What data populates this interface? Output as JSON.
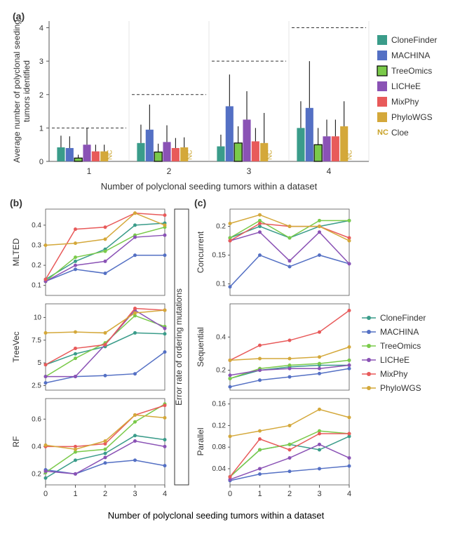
{
  "methods": {
    "CloneFinder": "#3a9c8a",
    "MACHINA": "#5470c4",
    "TreeOmics": "#7aca4a",
    "LICHeE": "#8a52b5",
    "MixPhy": "#e85a5a",
    "PhyloWGS": "#d4a83a",
    "Cloe": "#c9a227"
  },
  "panel_a": {
    "label": "(a)",
    "ylabel": "Average number of polyclonal seeding\ntumors identified",
    "xlabel": "Number of polyclonal seeding tumors within a dataset",
    "x_categories": [
      1,
      2,
      3,
      4
    ],
    "ylim": [
      0,
      4.2
    ],
    "yticks": [
      0,
      1,
      2,
      3,
      4
    ],
    "dashed_lines": [
      1,
      2,
      3,
      4
    ],
    "bars": {
      "1": {
        "CloneFinder": [
          0.42,
          0.35
        ],
        "MACHINA": [
          0.4,
          0.35
        ],
        "TreeOmics": [
          0.1,
          0.1
        ],
        "LICHeE": [
          0.5,
          0.5
        ],
        "MixPhy": [
          0.3,
          0.2
        ],
        "PhyloWGS": [
          0.3,
          0.2
        ]
      },
      "2": {
        "CloneFinder": [
          0.55,
          0.55
        ],
        "MACHINA": [
          0.95,
          0.75
        ],
        "TreeOmics": [
          0.28,
          0.25
        ],
        "LICHeE": [
          0.58,
          0.5
        ],
        "MixPhy": [
          0.4,
          0.3
        ],
        "PhyloWGS": [
          0.42,
          0.3
        ]
      },
      "3": {
        "CloneFinder": [
          0.45,
          0.35
        ],
        "MACHINA": [
          1.65,
          0.95
        ],
        "TreeOmics": [
          0.55,
          0.5
        ],
        "LICHeE": [
          1.25,
          0.85
        ],
        "MixPhy": [
          0.6,
          0.4
        ],
        "PhyloWGS": [
          0.55,
          0.9
        ]
      },
      "4": {
        "CloneFinder": [
          1.0,
          0.8
        ],
        "MACHINA": [
          1.6,
          1.4
        ],
        "TreeOmics": [
          0.5,
          0.5
        ],
        "LICHeE": [
          0.75,
          0.5
        ],
        "MixPhy": [
          0.75,
          0.5
        ],
        "PhyloWGS": [
          1.05,
          0.75
        ]
      }
    }
  },
  "panel_b": {
    "label": "(b)",
    "x_values": [
      0,
      1,
      2,
      3,
      4
    ],
    "subpanels": [
      {
        "ylabel": "MLTED",
        "ylim": [
          0.05,
          0.48
        ],
        "yticks": [
          0.1,
          0.2,
          0.3,
          0.4
        ],
        "series": {
          "CloneFinder": [
            0.13,
            0.22,
            0.28,
            0.4,
            0.41
          ],
          "MACHINA": [
            0.12,
            0.18,
            0.16,
            0.25,
            0.25
          ],
          "TreeOmics": [
            0.12,
            0.24,
            0.27,
            0.35,
            0.39
          ],
          "LICHeE": [
            0.12,
            0.2,
            0.22,
            0.34,
            0.35
          ],
          "MixPhy": [
            0.13,
            0.38,
            0.39,
            0.46,
            0.45
          ],
          "PhyloWGS": [
            0.3,
            0.31,
            0.33,
            0.46,
            0.4
          ]
        }
      },
      {
        "ylabel": "TreeVec",
        "ylim": [
          2.0,
          11.5
        ],
        "yticks": [
          2.5,
          5.0,
          7.5,
          10.0
        ],
        "series": {
          "CloneFinder": [
            4.8,
            6.0,
            6.8,
            8.3,
            8.2
          ],
          "MACHINA": [
            2.8,
            3.5,
            3.6,
            3.8,
            6.2
          ],
          "TreeOmics": [
            3.5,
            5.5,
            7.2,
            10.2,
            9.0
          ],
          "LICHeE": [
            3.5,
            3.5,
            7.0,
            10.8,
            8.8
          ],
          "MixPhy": [
            4.8,
            6.6,
            7.0,
            11.0,
            10.8
          ],
          "PhyloWGS": [
            8.3,
            8.4,
            8.3,
            10.5,
            10.8
          ]
        }
      },
      {
        "ylabel": "RF",
        "ylim": [
          0.12,
          0.75
        ],
        "yticks": [
          0.2,
          0.4,
          0.6
        ],
        "series": {
          "CloneFinder": [
            0.17,
            0.3,
            0.35,
            0.48,
            0.45
          ],
          "MACHINA": [
            0.23,
            0.2,
            0.28,
            0.3,
            0.26
          ],
          "TreeOmics": [
            0.21,
            0.36,
            0.38,
            0.58,
            0.71
          ],
          "LICHeE": [
            0.22,
            0.2,
            0.32,
            0.44,
            0.4
          ],
          "MixPhy": [
            0.4,
            0.4,
            0.42,
            0.63,
            0.7
          ],
          "PhyloWGS": [
            0.41,
            0.38,
            0.44,
            0.63,
            0.61
          ]
        }
      }
    ]
  },
  "panel_c": {
    "label": "(c)",
    "rotated_label": "Error rate of ordering mutations",
    "x_values": [
      0,
      1,
      2,
      3,
      4
    ],
    "subpanels": [
      {
        "ylabel": "Concurrent",
        "ylim": [
          0.08,
          0.23
        ],
        "yticks": [
          0.1,
          0.15,
          0.2
        ],
        "series": {
          "CloneFinder": [
            0.18,
            0.2,
            0.18,
            0.2,
            0.21
          ],
          "MACHINA": [
            0.095,
            0.15,
            0.13,
            0.15,
            0.135
          ],
          "TreeOmics": [
            0.18,
            0.21,
            0.18,
            0.21,
            0.21
          ],
          "LICHeE": [
            0.175,
            0.19,
            0.14,
            0.19,
            0.135
          ],
          "MixPhy": [
            0.175,
            0.205,
            0.2,
            0.2,
            0.18
          ],
          "PhyloWGS": [
            0.205,
            0.22,
            0.2,
            0.2,
            0.175
          ]
        }
      },
      {
        "ylabel": "Sequential",
        "ylim": [
          0.08,
          0.6
        ],
        "yticks": [
          0.2,
          0.4
        ],
        "series": {
          "CloneFinder": [
            0.15,
            0.2,
            0.22,
            0.23,
            0.23
          ],
          "MACHINA": [
            0.1,
            0.14,
            0.16,
            0.18,
            0.21
          ],
          "TreeOmics": [
            0.15,
            0.21,
            0.23,
            0.24,
            0.26
          ],
          "LICHeE": [
            0.17,
            0.2,
            0.21,
            0.21,
            0.23
          ],
          "MixPhy": [
            0.26,
            0.35,
            0.38,
            0.43,
            0.56
          ],
          "PhyloWGS": [
            0.26,
            0.27,
            0.27,
            0.28,
            0.34
          ]
        }
      },
      {
        "ylabel": "Parallel",
        "ylim": [
          0.01,
          0.17
        ],
        "yticks": [
          0.04,
          0.08,
          0.12,
          0.16
        ],
        "series": {
          "CloneFinder": [
            0.025,
            0.075,
            0.085,
            0.075,
            0.1
          ],
          "MACHINA": [
            0.018,
            0.03,
            0.035,
            0.04,
            0.045
          ],
          "TreeOmics": [
            0.025,
            0.075,
            0.085,
            0.11,
            0.105
          ],
          "LICHeE": [
            0.02,
            0.04,
            0.06,
            0.085,
            0.06
          ],
          "MixPhy": [
            0.025,
            0.095,
            0.075,
            0.105,
            0.105
          ],
          "PhyloWGS": [
            0.1,
            0.11,
            0.12,
            0.15,
            0.135
          ]
        }
      }
    ]
  },
  "bottom_xlabel": "Number of polyclonal seeding tumors within a dataset",
  "legend_order": [
    "CloneFinder",
    "MACHINA",
    "TreeOmics",
    "LICHeE",
    "MixPhy",
    "PhyloWGS"
  ],
  "panel_a_legend_order": [
    "CloneFinder",
    "MACHINA",
    "TreeOmics",
    "LICHeE",
    "MixPhy",
    "PhyloWGS",
    "Cloe"
  ],
  "nc_label": "NC",
  "treeomics_stroke": "#000000",
  "axis_color": "#555555",
  "line_width": 1.5,
  "marker_radius": 2.5
}
